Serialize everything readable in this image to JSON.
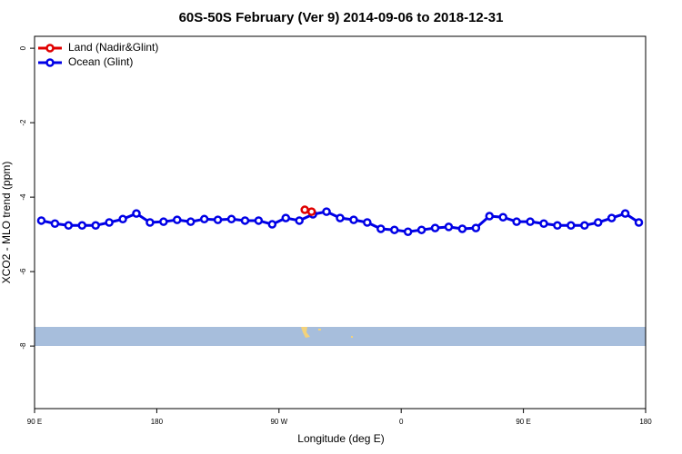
{
  "chart_data": {
    "type": "line",
    "title": "60S-50S February (Ver 9)   2014-09-06 to 2018-12-31",
    "x_label": "Longitude (deg E)",
    "y_label": "XCO2 - MLO trend (ppm)",
    "xlim": [
      90,
      540
    ],
    "ylim": [
      -9.68,
      0.32
    ],
    "xticks": [
      {
        "value": 90,
        "label": "90 E"
      },
      180,
      {
        "value": 270,
        "label": "90 W"
      },
      {
        "value": 360,
        "label": "0"
      },
      {
        "value": 450,
        "label": "90 E"
      },
      {
        "value": 540,
        "label": "180"
      }
    ],
    "yticks": [
      0,
      -2,
      -4,
      -6,
      -8
    ],
    "legend": "top-left",
    "series": [
      {
        "name": "Land (Nadir&Glint)",
        "color": "#e00000",
        "x": [
          289,
          294
        ],
        "values": [
          -4.34,
          -4.39
        ]
      },
      {
        "name": "Ocean (Glint)",
        "color": "#0000e6",
        "x": [
          95,
          105,
          115,
          125,
          135,
          145,
          155,
          165,
          175,
          185,
          195,
          205,
          215,
          225,
          235,
          245,
          255,
          265,
          275,
          285,
          295,
          305,
          315,
          325,
          335,
          345,
          355,
          365,
          375,
          385,
          395,
          405,
          415,
          425,
          435,
          445,
          455,
          465,
          475,
          485,
          495,
          505,
          515,
          525,
          535
        ],
        "values": [
          -4.63,
          -4.71,
          -4.76,
          -4.76,
          -4.76,
          -4.68,
          -4.59,
          -4.44,
          -4.68,
          -4.66,
          -4.61,
          -4.66,
          -4.59,
          -4.61,
          -4.59,
          -4.63,
          -4.63,
          -4.73,
          -4.56,
          -4.63,
          -4.46,
          -4.39,
          -4.56,
          -4.61,
          -4.68,
          -4.85,
          -4.88,
          -4.93,
          -4.88,
          -4.83,
          -4.8,
          -4.85,
          -4.83,
          -4.51,
          -4.54,
          -4.66,
          -4.66,
          -4.71,
          -4.76,
          -4.76,
          -4.76,
          -4.68,
          -4.56,
          -4.44,
          -4.68
        ]
      }
    ]
  }
}
